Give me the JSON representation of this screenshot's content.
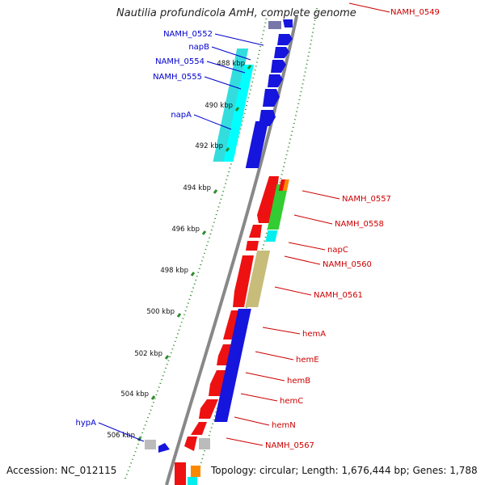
{
  "title": "Nautilia profundicola AmH, complete genome",
  "footer": {
    "accession": "Accession: NC_012115",
    "summary": "Topology: circular; Length: 1,676,444 bp; Genes: 1,788"
  },
  "colors": {
    "forward_label": "#0000cc",
    "reverse_label": "#cc0000",
    "tick": "#2e8b2e",
    "backbone": "#888888"
  },
  "ticks": [
    "488 kbp",
    "490 kbp",
    "492 kbp",
    "494 kbp",
    "496 kbp",
    "498 kbp",
    "500 kbp",
    "502 kbp",
    "504 kbp",
    "506 kbp"
  ],
  "gene_labels": [
    {
      "text": "NAMH_0549",
      "strand": "reverse"
    },
    {
      "text": "NAMH_0552",
      "strand": "forward"
    },
    {
      "text": "napB",
      "strand": "forward"
    },
    {
      "text": "NAMH_0554",
      "strand": "forward"
    },
    {
      "text": "NAMH_0555",
      "strand": "forward"
    },
    {
      "text": "napA",
      "strand": "forward"
    },
    {
      "text": "NAMH_0557",
      "strand": "reverse"
    },
    {
      "text": "NAMH_0558",
      "strand": "reverse"
    },
    {
      "text": "napC",
      "strand": "reverse"
    },
    {
      "text": "NAMH_0560",
      "strand": "reverse"
    },
    {
      "text": "NAMH_0561",
      "strand": "reverse"
    },
    {
      "text": "hemA",
      "strand": "reverse"
    },
    {
      "text": "hemE",
      "strand": "reverse"
    },
    {
      "text": "hemB",
      "strand": "reverse"
    },
    {
      "text": "hemC",
      "strand": "reverse"
    },
    {
      "text": "hemN",
      "strand": "reverse"
    },
    {
      "text": "NAMH_0567",
      "strand": "reverse"
    },
    {
      "text": "hypA",
      "strand": "forward"
    }
  ]
}
